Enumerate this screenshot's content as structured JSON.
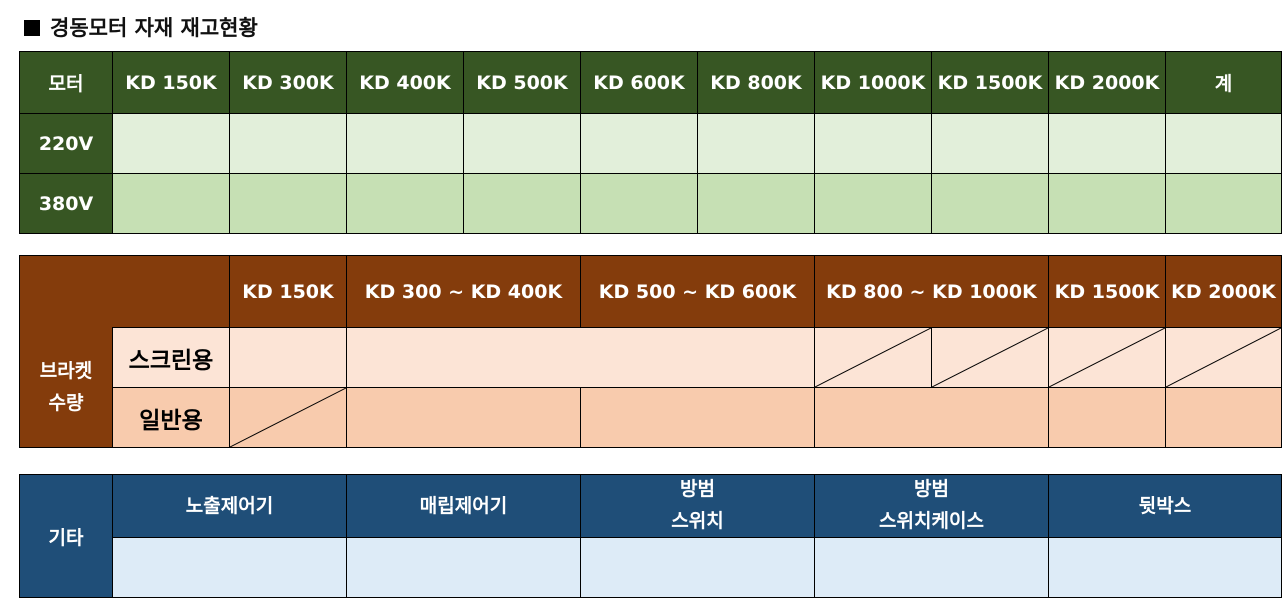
{
  "page_title": "경동모터 자재 재고현황",
  "motor": {
    "header_label": "모터",
    "columns": [
      "KD 150K",
      "KD 300K",
      "KD 400K",
      "KD 500K",
      "KD 600K",
      "KD 800K",
      "KD 1000K",
      "KD 1500K",
      "KD 2000K",
      "계"
    ],
    "rows": [
      {
        "label": "220V",
        "values": [
          "",
          "",
          "",
          "",
          "",
          "",
          "",
          "",
          "",
          ""
        ]
      },
      {
        "label": "380V",
        "values": [
          "",
          "",
          "",
          "",
          "",
          "",
          "",
          "",
          "",
          ""
        ]
      }
    ]
  },
  "bracket": {
    "label_line1": "브라켓",
    "label_line2": "수량",
    "columns": [
      "KD 150K",
      "KD 300 ~ KD 400K",
      "KD 500 ~ KD 600K",
      "KD 800 ~ KD 1000K",
      "KD 1500K",
      "KD 2000K"
    ],
    "rows": [
      {
        "label": "스크린용"
      },
      {
        "label": "일반용"
      }
    ]
  },
  "other": {
    "label": "기타",
    "columns": [
      {
        "line1": "노출제어기",
        "line2": ""
      },
      {
        "line1": "매립제어기",
        "line2": ""
      },
      {
        "line1": "방범",
        "line2": "스위치"
      },
      {
        "line1": "방범",
        "line2": "스위치케이스"
      },
      {
        "line1": "뒷박스",
        "line2": ""
      }
    ]
  },
  "colors": {
    "motor_header": "#375623",
    "motor_row_220": "#e2efda",
    "motor_row_380": "#c6e0b4",
    "bracket_header": "#843c0c",
    "bracket_row_screen": "#fce4d6",
    "bracket_row_general": "#f8cbad",
    "other_header": "#1f4e78",
    "other_row": "#ddebf7"
  }
}
